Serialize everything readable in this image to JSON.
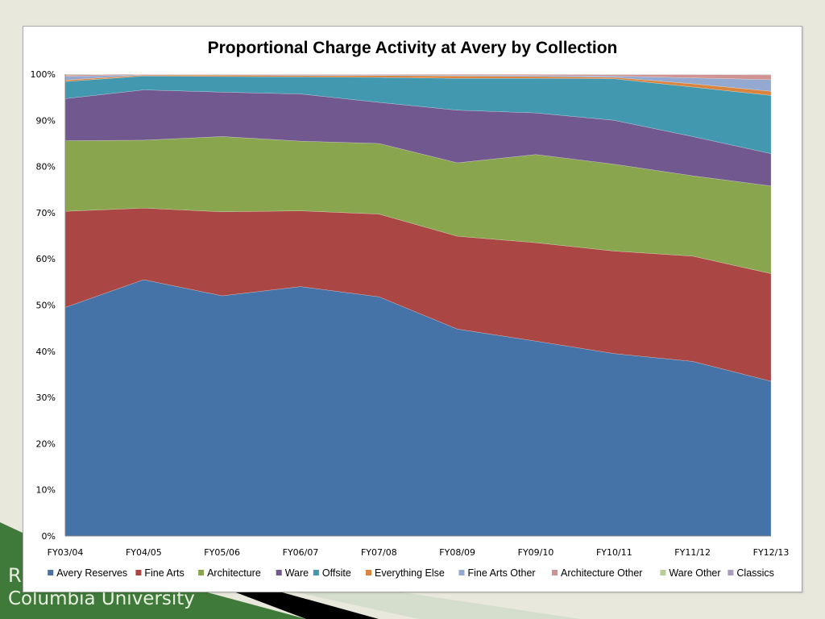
{
  "slide": {
    "title_partial": "R",
    "subtitle": "Columbia University",
    "colors": {
      "background": "#e9e8dc",
      "green_band": "#3f7a3a",
      "black_band": "#000000",
      "light_band": "#cfdac8"
    }
  },
  "chart_data": {
    "type": "area",
    "stacked": true,
    "normalized": true,
    "title": "Proportional Charge Activity at Avery by Collection",
    "xlabel": "",
    "ylabel": "",
    "ylim": [
      0,
      100
    ],
    "y_ticks": [
      "0%",
      "10%",
      "20%",
      "30%",
      "40%",
      "50%",
      "60%",
      "70%",
      "80%",
      "90%",
      "100%"
    ],
    "categories": [
      "FY03/04",
      "FY04/05",
      "FY05/06",
      "FY06/07",
      "FY07/08",
      "FY08/09",
      "FY09/10",
      "FY10/11",
      "FY11/12",
      "FY12/13"
    ],
    "grid": false,
    "legend_position": "bottom",
    "series": [
      {
        "name": "Avery Reserves",
        "color": "#4572a7",
        "values": [
          49.5,
          55.5,
          52.0,
          54.0,
          51.8,
          44.8,
          42.2,
          39.5,
          37.8,
          33.5
        ]
      },
      {
        "name": "Fine Arts",
        "color": "#aa4643",
        "values": [
          20.8,
          15.5,
          18.2,
          16.4,
          17.9,
          20.1,
          21.3,
          22.2,
          22.8,
          23.3
        ]
      },
      {
        "name": "Architecture",
        "color": "#89a54e",
        "values": [
          15.3,
          14.7,
          16.3,
          15.1,
          15.3,
          15.9,
          19.1,
          18.8,
          17.4,
          19.0
        ]
      },
      {
        "name": "Ware",
        "color": "#71588f",
        "values": [
          9.1,
          10.9,
          9.6,
          10.2,
          8.9,
          11.4,
          9.0,
          9.5,
          8.5,
          7.0
        ]
      },
      {
        "name": "Offsite",
        "color": "#4198af",
        "values": [
          3.7,
          3.0,
          3.4,
          3.7,
          5.4,
          6.9,
          7.5,
          9.0,
          10.7,
          12.6
        ]
      },
      {
        "name": "Everything Else",
        "color": "#db843d",
        "values": [
          0.3,
          0.2,
          0.3,
          0.3,
          0.4,
          0.5,
          0.4,
          0.3,
          0.7,
          0.9
        ]
      },
      {
        "name": "Fine Arts Other",
        "color": "#93a9cf",
        "values": [
          0.8,
          0.1,
          0.1,
          0.15,
          0.15,
          0.2,
          0.2,
          0.3,
          1.3,
          2.5
        ]
      },
      {
        "name": "Architecture Other",
        "color": "#d19392",
        "values": [
          0.3,
          0.1,
          0.1,
          0.15,
          0.15,
          0.2,
          0.25,
          0.3,
          0.7,
          1.05
        ]
      },
      {
        "name": "Ware Other",
        "color": "#b9cd96",
        "values": [
          0.1,
          0.0,
          0.0,
          0.0,
          0.0,
          0.0,
          0.03,
          0.05,
          0.05,
          0.1
        ]
      },
      {
        "name": "Classics",
        "color": "#a99bbd",
        "values": [
          0.1,
          0.0,
          0.0,
          0.0,
          0.0,
          0.0,
          0.02,
          0.05,
          0.05,
          0.05
        ]
      }
    ]
  }
}
